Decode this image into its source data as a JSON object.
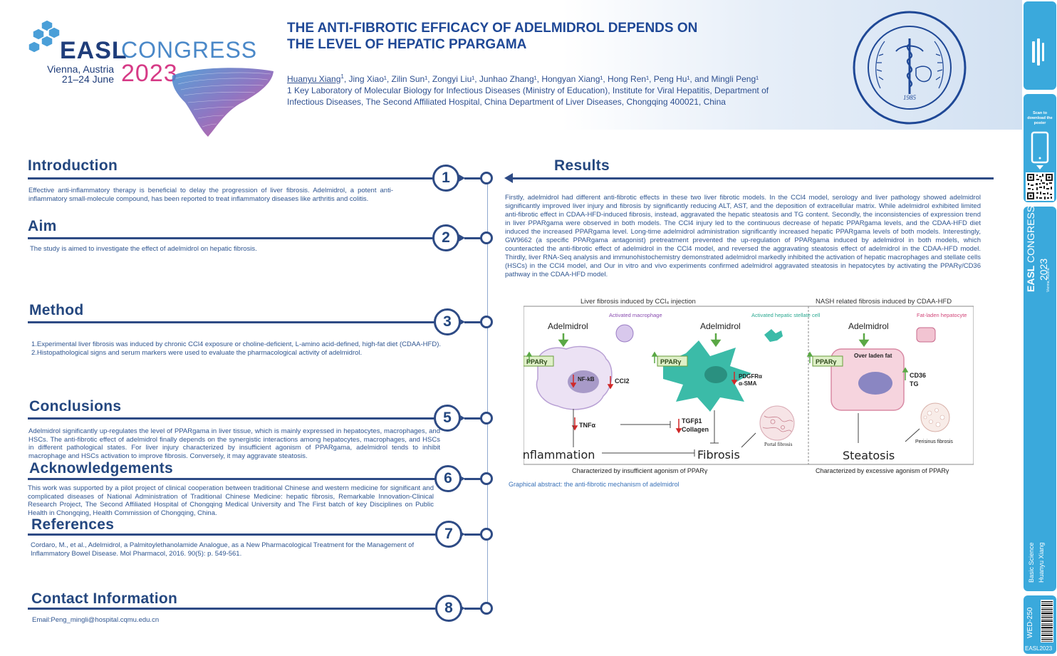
{
  "logo": {
    "brand": "EASL",
    "congress": "CONGRESS",
    "city": "Vienna, Austria",
    "dates": "21–24 June",
    "year": "2023"
  },
  "poster": {
    "title_line1": "THE ANTI-FIBROTIC EFFICACY OF ADELMIDROL DEPENDS ON",
    "title_line2": "THE LEVEL OF HEPATIC PPARGAMA",
    "first_author": "Huanyu Xiang",
    "first_author_sup": "1",
    "other_authors": ", Jing Xiao¹, Zilin Sun¹, Zongyi Liu¹, Junhao Zhang¹, Hongyan Xiang¹, Hong Ren¹, Peng Hu¹, and Mingli Peng¹",
    "affiliation": "1 Key Laboratory of Molecular Biology for Infectious Diseases (Ministry of Education), Institute for Viral Hepatitis, Department of Infectious Diseases, The Second Affiliated Hospital, China Department of Liver Diseases, Chongqing 400021, China"
  },
  "seal": {
    "year": "1985"
  },
  "sections": {
    "introduction": {
      "heading": "Introduction",
      "number": "1",
      "text": "Effective anti-inflammatory therapy is beneficial to delay the progression of liver fibrosis. Adelmidrol, a potent anti-inflammatory small-molecule compound, has been reported to treat inflammatory diseases like arthritis and colitis."
    },
    "aim": {
      "heading": "Aim",
      "number": "2",
      "text": "The study is aimed to investigate the effect of adelmidrol on hepatic fibrosis."
    },
    "method": {
      "heading": "Method",
      "number": "3",
      "line1": "1.Experimental liver fibrosis was induced by chronic CCl4 exposure or choline-deficient, L-amino acid-defined, high-fat diet (CDAA-HFD).",
      "line2": "2.Histopathological signs and serum markers were used to evaluate the pharmacological activity of adelmidrol."
    },
    "conclusions": {
      "heading": "Conclusions",
      "number": "5",
      "text": "Adelmidrol significantly up-regulates the level of PPARgama in liver tissue, which is mainly expressed in hepatocytes, macrophages, and HSCs. The anti-fibrotic effect of adelmidrol finally depends on the synergistic interactions among hepatocytes, macrophages, and HSCs in different pathological states. For liver injury characterized by insufficient agonism of PPARgama, adelmidrol tends to inhibit macrophage and HSCs activation to improve fibrosis. Conversely, it may aggravate steatosis."
    },
    "acknowledgements": {
      "heading": "Acknowledgements",
      "number": "6",
      "text": "This work was supported by a pilot project of clinical cooperation between traditional Chinese and western medicine for significant and complicated diseases of National Administration of Traditional Chinese Medicine: hepatic fibrosis, Remarkable Innovation-Clinical Research Project, The Second Affiliated Hospital of Chongqing Medical University and The First batch of key Disciplines on Public Health in Chongqing, Health Commission of Chongqing, China."
    },
    "references": {
      "heading": "References",
      "number": "7",
      "text": "Cordaro, M., et al., Adelmidrol, a Palmitoylethanolamide Analogue, as a New Pharmacological Treatment for the Management of Inflammatory Bowel Disease. Mol Pharmacol, 2016. 90(5): p. 549-561."
    },
    "contact": {
      "heading": "Contact Information",
      "number": "8",
      "text": "Email:Peng_mingli@hospital.cqmu.edu.cn"
    },
    "results": {
      "heading": "Results",
      "text": "Firstly, adelmidrol had different anti-fibrotic effects in these two liver fibrotic models. In the CCl4 model, serology and liver pathology showed adelmidrol significantly improved liver injury and fibrosis by significantly reducing ALT, AST, and the deposition of extracellular matrix. While adelmidrol exhibited limited anti-fibrotic effect in CDAA-HFD-induced fibrosis, instead, aggravated the hepatic steatosis and TG content. Secondly, the inconsistencies of expression trend in liver PPARgama were observed in both models. The CCl4 injury led to the continuous decrease of hepatic PPARgama levels, and the CDAA-HFD diet induced the increased PPARgama level. Long-time adelmidrol administration significantly increased hepatic PPARgama levels of both models. Interestingly, GW9662 (a specific PPARgama antagonist) pretreatment prevented the up-regulation of PPARgama induced by adelmidrol in both models, which counteracted the anti-fibrotic effect of adelmidrol in the CCl4 model, and reversed the aggravating steatosis effect of adelmidrol in the CDAA-HFD model. Thirdly, liver RNA-Seq analysis and immunohistochemistry demonstrated adelmidrol markedly inhibited the activation of hepatic macrophages and stellate cells (HSCs) in the CCl4 model, and Our in vitro and vivo experiments confirmed adelmidrol aggravated steatosis in hepatocytes by activating the PPARγ/CD36 pathway in the CDAA-HFD model."
    }
  },
  "figure": {
    "left_title": "Liver fibrosis induced by CCl₄ injection",
    "right_title": "NASH related fibrosis induced by CDAA-HFD",
    "adelmidrol": "Adelmidrol",
    "activated_macrophage": "Activated macrophage",
    "activated_hsc": "Activated hepatic stellate cell",
    "fat_laden": "Fat-laden hepatocyte",
    "ppar": "PPARγ",
    "nfkb": "NF-kB",
    "ccl2": "CCl2",
    "pdgfr": "PDGFRα",
    "asma": "α-SMA",
    "over_laden": "Over laden fat",
    "cd36": "CD36",
    "tg": "TG",
    "tnfa": "TNFα",
    "tgfb": "TGFβ1",
    "collagen": "Collagen",
    "inflammation": "Inflammation",
    "fibrosis": "Fibrosis",
    "steatosis": "Steatosis",
    "portal_fibrosis": "Portal fibrosis",
    "perisinus_fibrosis": "Perisinus fibrosis",
    "left_footer": "Characterized by insufficient agonism of PPARγ",
    "right_footer": "Characterized by excessive agonism of PPARγ",
    "caption": "Graphical abstract:   the anti-fibrotic mechanism of adelmidrol"
  },
  "sidebar": {
    "scan_text": "Scan to download the poster",
    "congress_year": "2023",
    "vertical_meta": "Basic Science",
    "vertical_author": "Huanyu Xiang",
    "poster_code": "WED-250",
    "footer": "EASL2023"
  },
  "colors": {
    "navy": "#2e4b85",
    "heading": "#24477f",
    "accent_blue": "#3aa9dc",
    "logo_pink": "#d63a86"
  }
}
